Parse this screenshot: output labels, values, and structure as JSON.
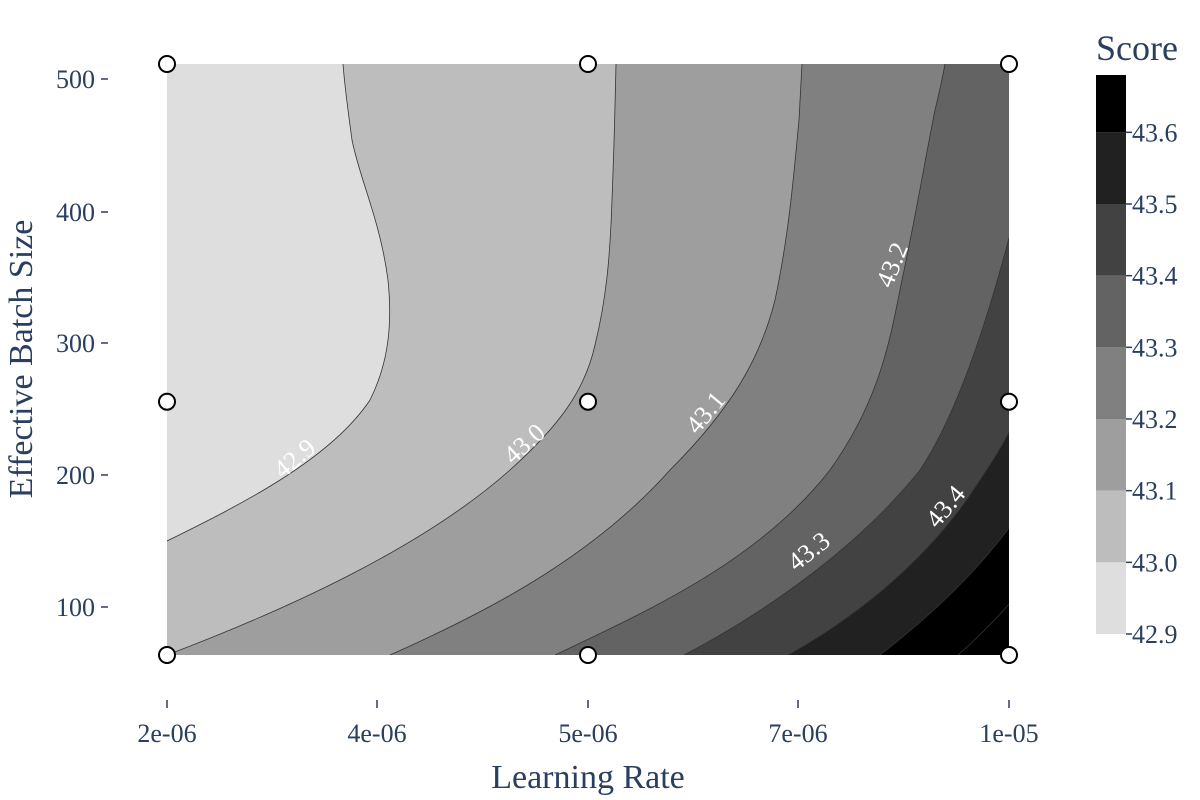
{
  "chart_data": {
    "type": "contour",
    "xlabel": "Learning Rate",
    "ylabel": "Effective Batch Size",
    "colorbar_title": "Score",
    "x_ticks": [
      "2e-06",
      "4e-06",
      "5e-06",
      "7e-06",
      "1e-05"
    ],
    "y_ticks": [
      "100",
      "200",
      "300",
      "400",
      "500"
    ],
    "colorbar_ticks": [
      "42.9",
      "43.0",
      "43.1",
      "43.2",
      "43.3",
      "43.4",
      "43.5",
      "43.6"
    ],
    "xlim": [
      2e-06,
      1e-05
    ],
    "ylim": [
      64,
      512
    ],
    "z_range": [
      42.9,
      43.68
    ],
    "contour_levels": [
      43.0,
      43.1,
      43.2,
      43.3,
      43.4,
      43.5,
      43.6
    ],
    "contour_labels": [
      "42.9",
      "43.0",
      "43.1",
      "43.2",
      "43.3",
      "43.4"
    ],
    "colorscale": [
      "#ffffff",
      "#dedede",
      "#bdbdbd",
      "#9e9e9e",
      "#808080",
      "#636363",
      "#424242",
      "#212121",
      "#000000"
    ],
    "points": [
      {
        "x": "2e-06",
        "y": 64
      },
      {
        "x": "2e-06",
        "y": 256
      },
      {
        "x": "2e-06",
        "y": 512
      },
      {
        "x": "5e-06",
        "y": 64
      },
      {
        "x": "5e-06",
        "y": 256
      },
      {
        "x": "5e-06",
        "y": 512
      },
      {
        "x": "1e-05",
        "y": 64
      },
      {
        "x": "1e-05",
        "y": 256
      },
      {
        "x": "1e-05",
        "y": 512
      }
    ]
  }
}
